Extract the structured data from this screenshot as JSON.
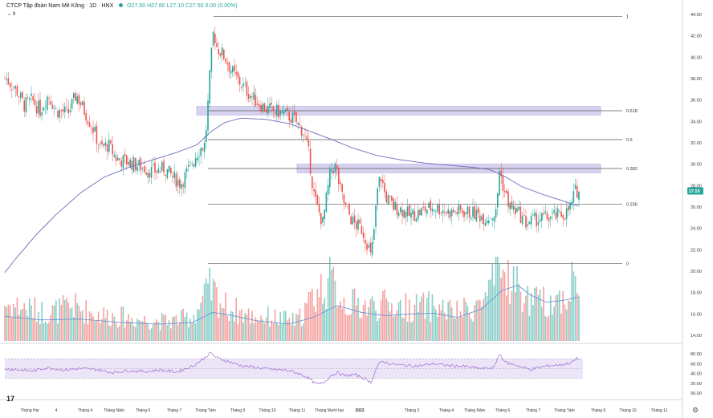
{
  "legend": {
    "title": "CTCP Tập đoàn Nam Mê Kông",
    "interval": "1D",
    "exchange": "HNX",
    "ohlc": "O27.50 H27.80 L27.10 C27.50 0.00 (0.00%)"
  },
  "indicator_count": "9",
  "colors": {
    "up": "#26a69a",
    "down": "#ef5350",
    "ma": "#6b6fbf",
    "rsi": "#9c6fd0",
    "band": "#ece4f7",
    "zone": "#c9c4ea"
  },
  "chart_data": {
    "type": "candlestick",
    "price_axis": {
      "min": 14,
      "max": 44,
      "ticks": [
        "44.00",
        "42.00",
        "40.00",
        "38.00",
        "36.00",
        "34.00",
        "32.00",
        "30.00",
        "28.00",
        "26.00",
        "24.00",
        "22.00",
        "20.00",
        "18.00",
        "16.00",
        "14.00"
      ]
    },
    "last_price": "27.50",
    "fibonacci": [
      {
        "label": "1",
        "price": 43.8
      },
      {
        "label": "0.618",
        "price": 35.0
      },
      {
        "label": "0.5",
        "price": 32.3
      },
      {
        "label": "0.382",
        "price": 29.6
      },
      {
        "label": "0.236",
        "price": 26.25
      },
      {
        "label": "0",
        "price": 20.7
      }
    ],
    "zones": [
      {
        "low": 34.6,
        "high": 35.4
      },
      {
        "low": 29.2,
        "high": 30.0
      }
    ],
    "rsi_axis": {
      "ticks": [
        "80.00",
        "60.00",
        "40.00",
        "20.00",
        "00.00"
      ],
      "upper": 70,
      "lower": 30
    },
    "time_labels": [
      "Tháng Hai",
      "4",
      "Tháng 4",
      "Tháng Năm",
      "Tháng 6",
      "Tháng 7",
      "Tháng Tám",
      "Tháng 9",
      "Tháng 10",
      "Tháng 11",
      "Tháng Mười hai",
      "2023",
      "Tháng 3",
      "Tháng 4",
      "Tháng Năm",
      "Tháng 6",
      "Tháng 7",
      "Tháng Tám",
      "Tháng 9",
      "Tháng 10",
      "Tháng 11"
    ],
    "waypoints": [
      [
        0,
        38.5
      ],
      [
        10,
        37.8
      ],
      [
        20,
        37.0
      ],
      [
        30,
        35.5
      ],
      [
        40,
        36.0
      ],
      [
        50,
        35.0
      ],
      [
        60,
        36.5
      ],
      [
        70,
        35.0
      ],
      [
        85,
        34.8
      ],
      [
        95,
        36.5
      ],
      [
        105,
        35.0
      ],
      [
        115,
        33.5
      ],
      [
        125,
        31.5
      ],
      [
        135,
        31.8
      ],
      [
        145,
        30.5
      ],
      [
        160,
        30.2
      ],
      [
        175,
        29.8
      ],
      [
        190,
        29.3
      ],
      [
        205,
        29.6
      ],
      [
        215,
        28.8
      ],
      [
        225,
        28.2
      ],
      [
        235,
        29.5
      ],
      [
        245,
        31.0
      ],
      [
        250,
        31.5
      ],
      [
        255,
        31.8
      ],
      [
        258,
        34.5
      ],
      [
        262,
        39.0
      ],
      [
        266,
        42.5
      ],
      [
        270,
        41.0
      ],
      [
        280,
        40.0
      ],
      [
        290,
        38.5
      ],
      [
        300,
        37.5
      ],
      [
        315,
        36.2
      ],
      [
        330,
        35.2
      ],
      [
        350,
        34.8
      ],
      [
        365,
        34.3
      ],
      [
        378,
        33.0
      ],
      [
        385,
        30.8
      ],
      [
        390,
        27.5
      ],
      [
        395,
        26.0
      ],
      [
        402,
        24.5
      ],
      [
        407,
        27.0
      ],
      [
        412,
        29.5
      ],
      [
        418,
        29.8
      ],
      [
        424,
        27.5
      ],
      [
        430,
        26.0
      ],
      [
        440,
        24.5
      ],
      [
        450,
        24.0
      ],
      [
        458,
        22.5
      ],
      [
        462,
        21.2
      ],
      [
        466,
        24.0
      ],
      [
        470,
        27.5
      ],
      [
        474,
        29.0
      ],
      [
        480,
        27.0
      ],
      [
        490,
        26.0
      ],
      [
        500,
        25.8
      ],
      [
        510,
        25.2
      ],
      [
        520,
        25.4
      ],
      [
        530,
        25.8
      ],
      [
        540,
        26.0
      ],
      [
        550,
        25.8
      ],
      [
        560,
        25.5
      ],
      [
        575,
        25.6
      ],
      [
        590,
        25.4
      ],
      [
        605,
        25.0
      ],
      [
        618,
        25.4
      ],
      [
        622,
        29.5
      ],
      [
        628,
        27.5
      ],
      [
        635,
        26.0
      ],
      [
        645,
        25.5
      ],
      [
        655,
        24.5
      ],
      [
        665,
        24.8
      ],
      [
        680,
        25.0
      ],
      [
        695,
        25.2
      ],
      [
        705,
        25.4
      ],
      [
        712,
        26.2
      ],
      [
        716,
        27.5
      ],
      [
        720,
        27.5
      ]
    ],
    "ma_waypoints": [
      [
        0,
        19.3
      ],
      [
        20,
        21.2
      ],
      [
        45,
        23.4
      ],
      [
        70,
        25.3
      ],
      [
        100,
        27.3
      ],
      [
        130,
        28.8
      ],
      [
        160,
        29.7
      ],
      [
        190,
        30.4
      ],
      [
        220,
        31.1
      ],
      [
        245,
        31.8
      ],
      [
        262,
        33.0
      ],
      [
        280,
        33.9
      ],
      [
        300,
        34.3
      ],
      [
        330,
        34.2
      ],
      [
        360,
        33.8
      ],
      [
        385,
        33.1
      ],
      [
        410,
        32.4
      ],
      [
        440,
        31.5
      ],
      [
        470,
        30.8
      ],
      [
        500,
        30.4
      ],
      [
        530,
        30.1
      ],
      [
        560,
        29.9
      ],
      [
        590,
        29.7
      ],
      [
        610,
        29.5
      ],
      [
        630,
        28.8
      ],
      [
        650,
        27.9
      ],
      [
        675,
        27.2
      ],
      [
        700,
        26.6
      ],
      [
        720,
        26.1
      ]
    ],
    "volume_waypoints": [
      [
        0,
        0.55
      ],
      [
        30,
        0.48
      ],
      [
        60,
        0.4
      ],
      [
        90,
        0.5
      ],
      [
        120,
        0.38
      ],
      [
        150,
        0.35
      ],
      [
        180,
        0.3
      ],
      [
        210,
        0.28
      ],
      [
        240,
        0.35
      ],
      [
        262,
        0.75
      ],
      [
        280,
        0.5
      ],
      [
        310,
        0.36
      ],
      [
        340,
        0.34
      ],
      [
        370,
        0.28
      ],
      [
        388,
        0.6
      ],
      [
        410,
        0.88
      ],
      [
        430,
        0.55
      ],
      [
        460,
        0.5
      ],
      [
        480,
        0.52
      ],
      [
        510,
        0.48
      ],
      [
        540,
        0.5
      ],
      [
        570,
        0.4
      ],
      [
        600,
        0.55
      ],
      [
        612,
        0.75
      ],
      [
        625,
        1.0
      ],
      [
        640,
        0.85
      ],
      [
        655,
        0.6
      ],
      [
        670,
        0.55
      ],
      [
        690,
        0.58
      ],
      [
        705,
        0.65
      ],
      [
        712,
        0.85
      ],
      [
        718,
        1.0
      ],
      [
        720,
        0.55
      ]
    ],
    "volume_ma_waypoints": [
      [
        0,
        0.3
      ],
      [
        50,
        0.25
      ],
      [
        100,
        0.26
      ],
      [
        150,
        0.22
      ],
      [
        200,
        0.2
      ],
      [
        240,
        0.22
      ],
      [
        265,
        0.34
      ],
      [
        290,
        0.3
      ],
      [
        320,
        0.24
      ],
      [
        360,
        0.2
      ],
      [
        390,
        0.28
      ],
      [
        420,
        0.42
      ],
      [
        450,
        0.34
      ],
      [
        480,
        0.3
      ],
      [
        510,
        0.32
      ],
      [
        540,
        0.33
      ],
      [
        570,
        0.28
      ],
      [
        600,
        0.38
      ],
      [
        625,
        0.6
      ],
      [
        645,
        0.66
      ],
      [
        660,
        0.55
      ],
      [
        680,
        0.46
      ],
      [
        700,
        0.48
      ],
      [
        720,
        0.52
      ]
    ],
    "rsi_waypoints": [
      [
        0,
        50
      ],
      [
        20,
        48
      ],
      [
        40,
        45
      ],
      [
        60,
        52
      ],
      [
        80,
        47
      ],
      [
        100,
        50
      ],
      [
        120,
        48
      ],
      [
        140,
        42
      ],
      [
        160,
        46
      ],
      [
        180,
        44
      ],
      [
        200,
        47
      ],
      [
        220,
        43
      ],
      [
        240,
        55
      ],
      [
        255,
        72
      ],
      [
        262,
        82
      ],
      [
        270,
        72
      ],
      [
        285,
        64
      ],
      [
        300,
        56
      ],
      [
        320,
        52
      ],
      [
        340,
        48
      ],
      [
        360,
        46
      ],
      [
        375,
        38
      ],
      [
        385,
        30
      ],
      [
        392,
        20
      ],
      [
        398,
        18
      ],
      [
        405,
        24
      ],
      [
        412,
        36
      ],
      [
        420,
        42
      ],
      [
        430,
        35
      ],
      [
        440,
        38
      ],
      [
        450,
        33
      ],
      [
        458,
        26
      ],
      [
        462,
        22
      ],
      [
        470,
        55
      ],
      [
        476,
        65
      ],
      [
        485,
        60
      ],
      [
        500,
        57
      ],
      [
        520,
        55
      ],
      [
        540,
        60
      ],
      [
        560,
        56
      ],
      [
        580,
        54
      ],
      [
        600,
        50
      ],
      [
        615,
        52
      ],
      [
        622,
        80
      ],
      [
        630,
        62
      ],
      [
        645,
        56
      ],
      [
        660,
        48
      ],
      [
        680,
        55
      ],
      [
        700,
        58
      ],
      [
        712,
        62
      ],
      [
        718,
        70
      ],
      [
        720,
        70
      ]
    ]
  }
}
